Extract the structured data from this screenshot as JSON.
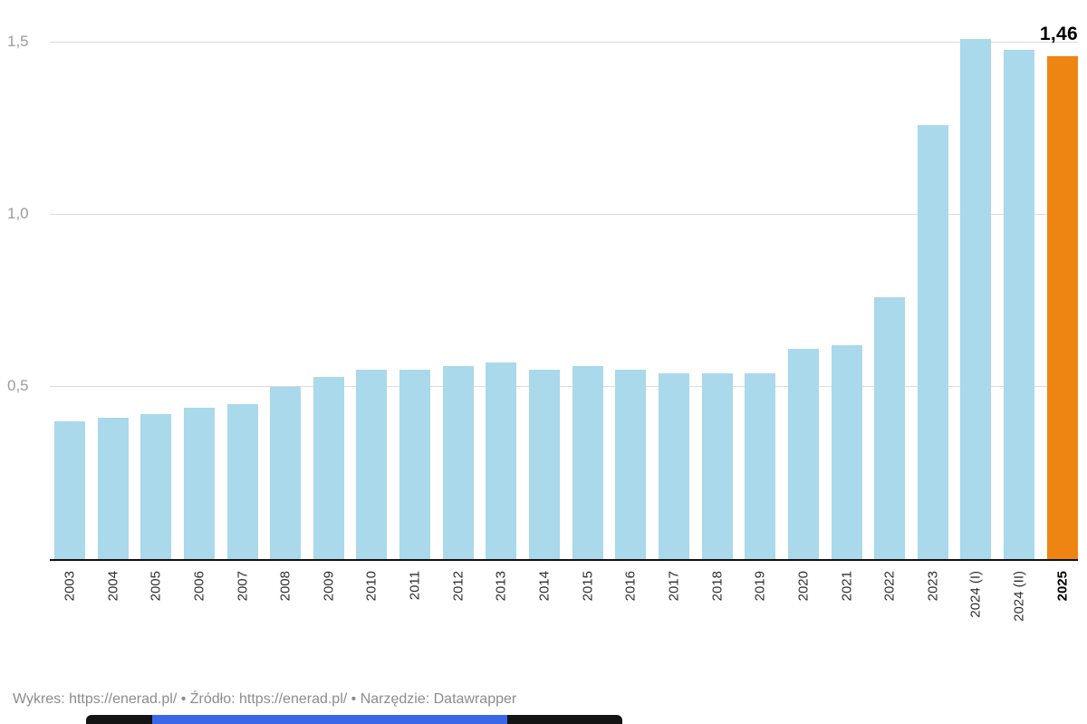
{
  "chart_data": {
    "type": "bar",
    "categories": [
      "2003",
      "2004",
      "2005",
      "2006",
      "2007",
      "2008",
      "2009",
      "2010",
      "2011",
      "2012",
      "2013",
      "2014",
      "2015",
      "2016",
      "2017",
      "2018",
      "2019",
      "2020",
      "2021",
      "2022",
      "2023",
      "2024 (I)",
      "2024 (II)",
      "2025"
    ],
    "values": [
      0.4,
      0.41,
      0.42,
      0.44,
      0.45,
      0.5,
      0.53,
      0.55,
      0.55,
      0.56,
      0.57,
      0.55,
      0.56,
      0.55,
      0.54,
      0.54,
      0.54,
      0.61,
      0.62,
      0.76,
      1.26,
      1.51,
      1.48,
      1.46
    ],
    "title": "",
    "xlabel": "",
    "ylabel": "",
    "ylim": [
      0,
      1.6
    ],
    "grid": true,
    "legend": "none",
    "yticks": [
      {
        "value": 0.5,
        "label": "0,5"
      },
      {
        "value": 1.0,
        "label": "1,0"
      },
      {
        "value": 1.5,
        "label": "1,5"
      }
    ],
    "bar_color": "#a9d9ea",
    "highlight_color": "#ee8512",
    "highlight_index": 23,
    "value_label": {
      "index": 23,
      "text": "1,46"
    }
  },
  "footer": {
    "chart_label": "Wykres: ",
    "chart_url": "https://enerad.pl/",
    "separator": " • ",
    "source_label": "Źródło: ",
    "source_url": "https://enerad.pl/",
    "tool_label": "Narzędzie: ",
    "tool_name": "Datawrapper"
  },
  "colors": {
    "axis": "#101010",
    "gridline": "#dcdcdc",
    "ytick_text": "#9b9b9b",
    "footer_text": "#8c8c8c",
    "overlay_black": "#141414",
    "overlay_blue": "#3a66e8"
  }
}
